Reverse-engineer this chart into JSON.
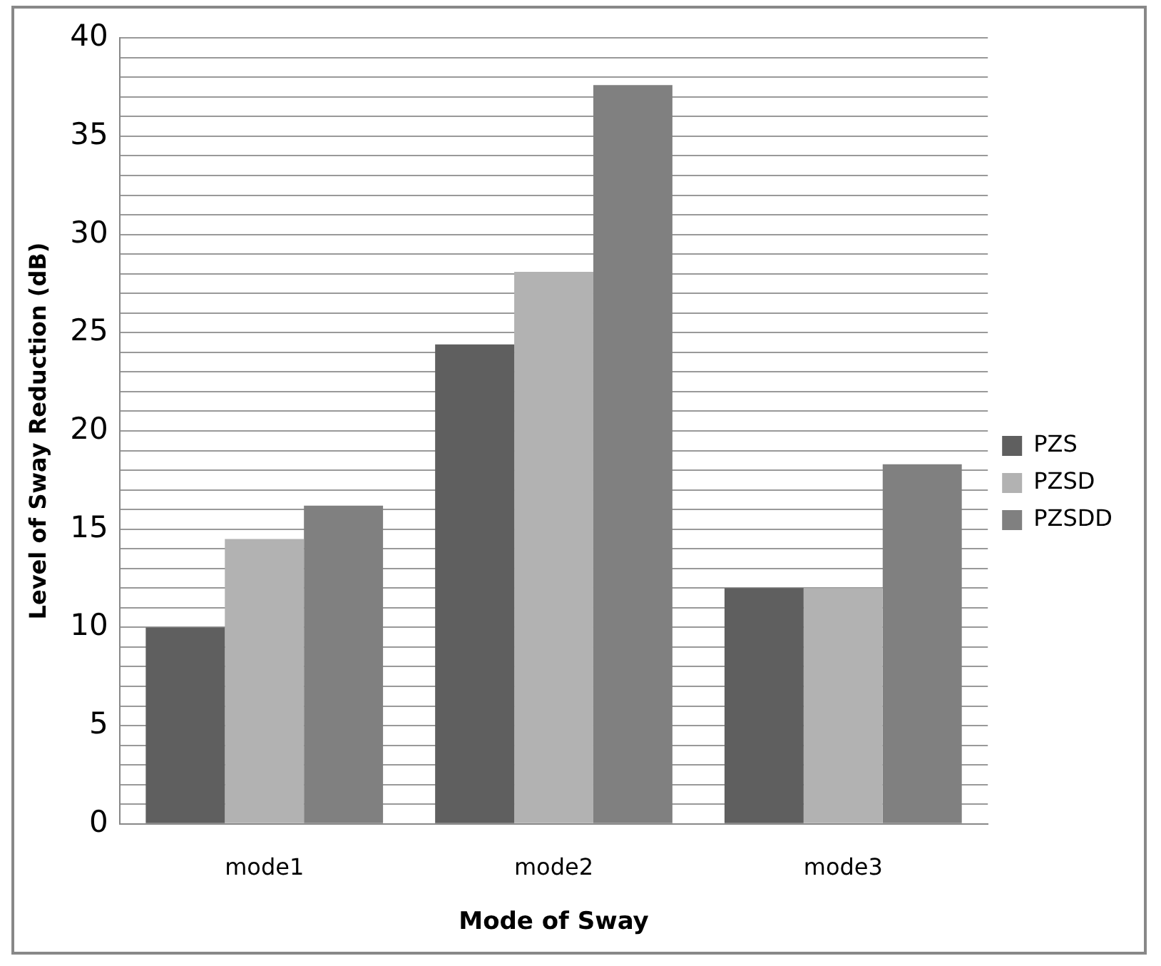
{
  "chart_data": {
    "type": "bar",
    "xlabel": "Mode of Sway",
    "ylabel": "Level of Sway Reduction (dB)",
    "categories": [
      "mode1",
      "mode2",
      "mode3"
    ],
    "series": [
      {
        "name": "PZS",
        "color": "#5f5f5f",
        "values": [
          10.0,
          24.4,
          12.0
        ]
      },
      {
        "name": "PZSD",
        "color": "#b2b2b2",
        "values": [
          14.5,
          28.1,
          12.0
        ]
      },
      {
        "name": "PZSDD",
        "color": "#808080",
        "values": [
          16.2,
          37.6,
          18.3
        ]
      }
    ],
    "ylim": [
      0,
      40
    ],
    "yticks": [
      0,
      {
        "value": 1,
        "label": null
      },
      {
        "value": 2,
        "label": null
      },
      {
        "value": 3,
        "label": null
      },
      {
        "value": 4,
        "label": null
      },
      5,
      {
        "value": 6,
        "label": null
      },
      {
        "value": 7,
        "label": null
      },
      {
        "value": 8,
        "label": null
      },
      {
        "value": 9,
        "label": null
      },
      10,
      {
        "value": 11,
        "label": null
      },
      {
        "value": 12,
        "label": null
      },
      {
        "value": 13,
        "label": null
      },
      {
        "value": 14,
        "label": null
      },
      15,
      {
        "value": 16,
        "label": null
      },
      {
        "value": 17,
        "label": null
      },
      {
        "value": 18,
        "label": null
      },
      {
        "value": 19,
        "label": null
      },
      20,
      {
        "value": 21,
        "label": null
      },
      {
        "value": 22,
        "label": null
      },
      {
        "value": 23,
        "label": null
      },
      {
        "value": 24,
        "label": null
      },
      25,
      {
        "value": 26,
        "label": null
      },
      {
        "value": 27,
        "label": null
      },
      {
        "value": 28,
        "label": null
      },
      {
        "value": 29,
        "label": null
      },
      30,
      {
        "value": 31,
        "label": null
      },
      {
        "value": 32,
        "label": null
      },
      {
        "value": 33,
        "label": null
      },
      {
        "value": 34,
        "label": null
      },
      35,
      {
        "value": 36,
        "label": null
      },
      {
        "value": 37,
        "label": null
      },
      {
        "value": 38,
        "label": null
      },
      {
        "value": 39,
        "label": null
      },
      40
    ],
    "grid": "y",
    "legend": "right"
  }
}
